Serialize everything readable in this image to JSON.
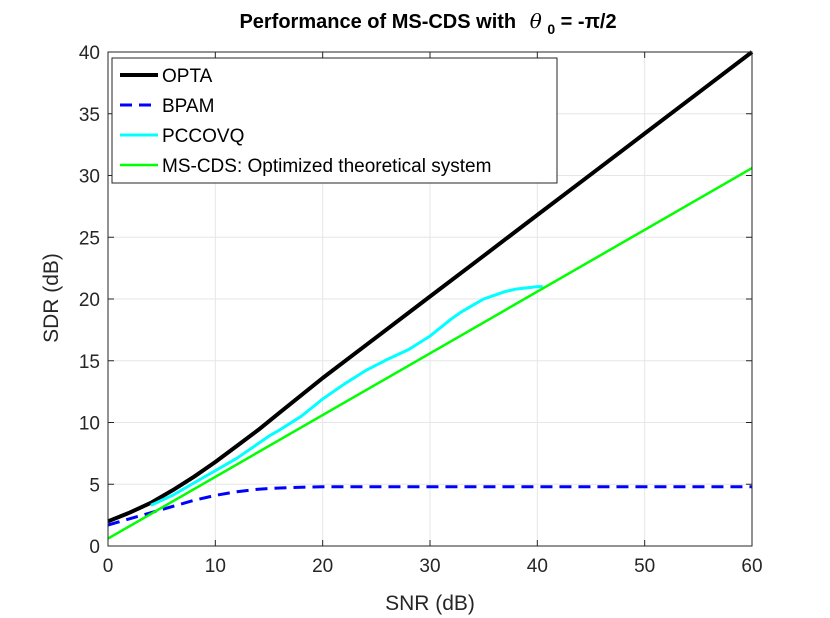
{
  "chart_data": {
    "type": "line",
    "title": "Performance of MS-CDS with",
    "title_symbol": "θ",
    "title_subscript": "0",
    "title_suffix": " = -π/2",
    "xlabel": "SNR (dB)",
    "ylabel": "SDR (dB)",
    "xlim": [
      0,
      60
    ],
    "ylim": [
      0,
      40
    ],
    "xticks": [
      0,
      10,
      20,
      30,
      40,
      50,
      60
    ],
    "yticks": [
      0,
      5,
      10,
      15,
      20,
      25,
      30,
      35,
      40
    ],
    "grid": true,
    "legend_position": "top-left",
    "series": [
      {
        "name": "OPTA",
        "color": "#000000",
        "style": "solid",
        "x": [
          0,
          2,
          4,
          6,
          8,
          10,
          12,
          14,
          16,
          20,
          25,
          30,
          35,
          40,
          45,
          50,
          55,
          60
        ],
        "y": [
          2.0,
          2.7,
          3.5,
          4.5,
          5.6,
          6.8,
          8.1,
          9.4,
          10.8,
          13.6,
          16.9,
          20.2,
          23.5,
          26.8,
          30.1,
          33.4,
          36.7,
          40.0
        ]
      },
      {
        "name": "BPAM",
        "color": "#0000ff",
        "style": "dashed",
        "x": [
          0,
          2,
          4,
          6,
          8,
          10,
          12,
          14,
          16,
          18,
          20,
          25,
          30,
          40,
          50,
          60
        ],
        "y": [
          1.7,
          2.2,
          2.7,
          3.2,
          3.7,
          4.1,
          4.4,
          4.6,
          4.7,
          4.75,
          4.8,
          4.8,
          4.8,
          4.8,
          4.8,
          4.8
        ]
      },
      {
        "name": "PCCOVQ",
        "color": "#00ffff",
        "style": "solid",
        "x": [
          4,
          6,
          8,
          10,
          12,
          14,
          15,
          16,
          18,
          20,
          22,
          24,
          26,
          28,
          30,
          32,
          33,
          34,
          35,
          36,
          37,
          38,
          39,
          40,
          40.5
        ],
        "y": [
          3.3,
          4.1,
          5.1,
          6.1,
          7.1,
          8.3,
          8.9,
          9.4,
          10.5,
          11.9,
          13.1,
          14.2,
          15.1,
          15.9,
          17.0,
          18.4,
          19.0,
          19.5,
          20.0,
          20.3,
          20.6,
          20.8,
          20.9,
          21.0,
          21.0
        ]
      },
      {
        "name": "MS-CDS: Optimized theoretical system",
        "color": "#00ff00",
        "style": "solid",
        "x": [
          0,
          60
        ],
        "y": [
          0.6,
          30.6
        ]
      }
    ]
  }
}
